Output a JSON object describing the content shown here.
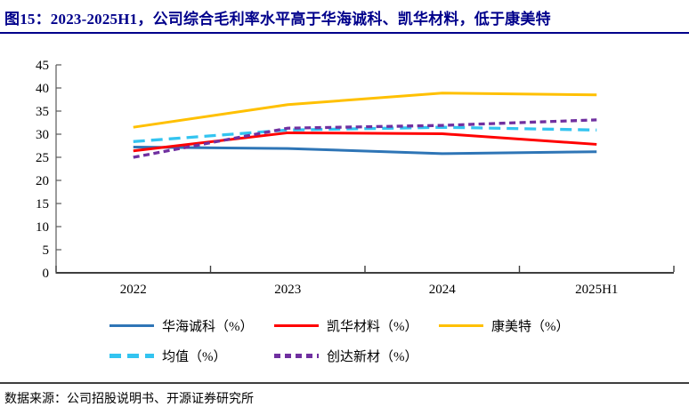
{
  "title": "图15：2023-2025H1，公司综合毛利率水平高于华海诚科、凯华材料，低于康美特",
  "footer": {
    "source_text": "数据来源：公司招股说明书、开源证券研究所"
  },
  "colors": {
    "title": "#00008B",
    "axis_spine": "#595959",
    "axis_bottom": "#3F3F3F",
    "label_text": "#000000"
  },
  "chart_data": {
    "type": "line",
    "title": "",
    "xlabel": "",
    "ylabel": "",
    "categories": [
      "2022",
      "2023",
      "2024",
      "2025H1"
    ],
    "series": [
      {
        "name": "华海诚科（%）",
        "color": "#2E75B6",
        "dash": "none",
        "values": [
          27.2,
          26.9,
          25.8,
          26.2
        ]
      },
      {
        "name": "凯华材料（%）",
        "color": "#FF0000",
        "dash": "none",
        "values": [
          26.4,
          30.3,
          30.1,
          27.8
        ]
      },
      {
        "name": "康美特（%）",
        "color": "#FFC000",
        "dash": "none",
        "values": [
          31.5,
          36.4,
          38.9,
          38.5
        ]
      },
      {
        "name": "均值（%）",
        "color": "#33C4F0",
        "dash": "long",
        "values": [
          28.4,
          30.9,
          31.5,
          30.9
        ]
      },
      {
        "name": "创达新材（%）",
        "color": "#7030A0",
        "dash": "short",
        "values": [
          25.0,
          31.3,
          31.9,
          33.1
        ]
      }
    ],
    "ylim": [
      0,
      45
    ],
    "ytick_step": 5,
    "grid": false,
    "legend_position": "bottom"
  }
}
